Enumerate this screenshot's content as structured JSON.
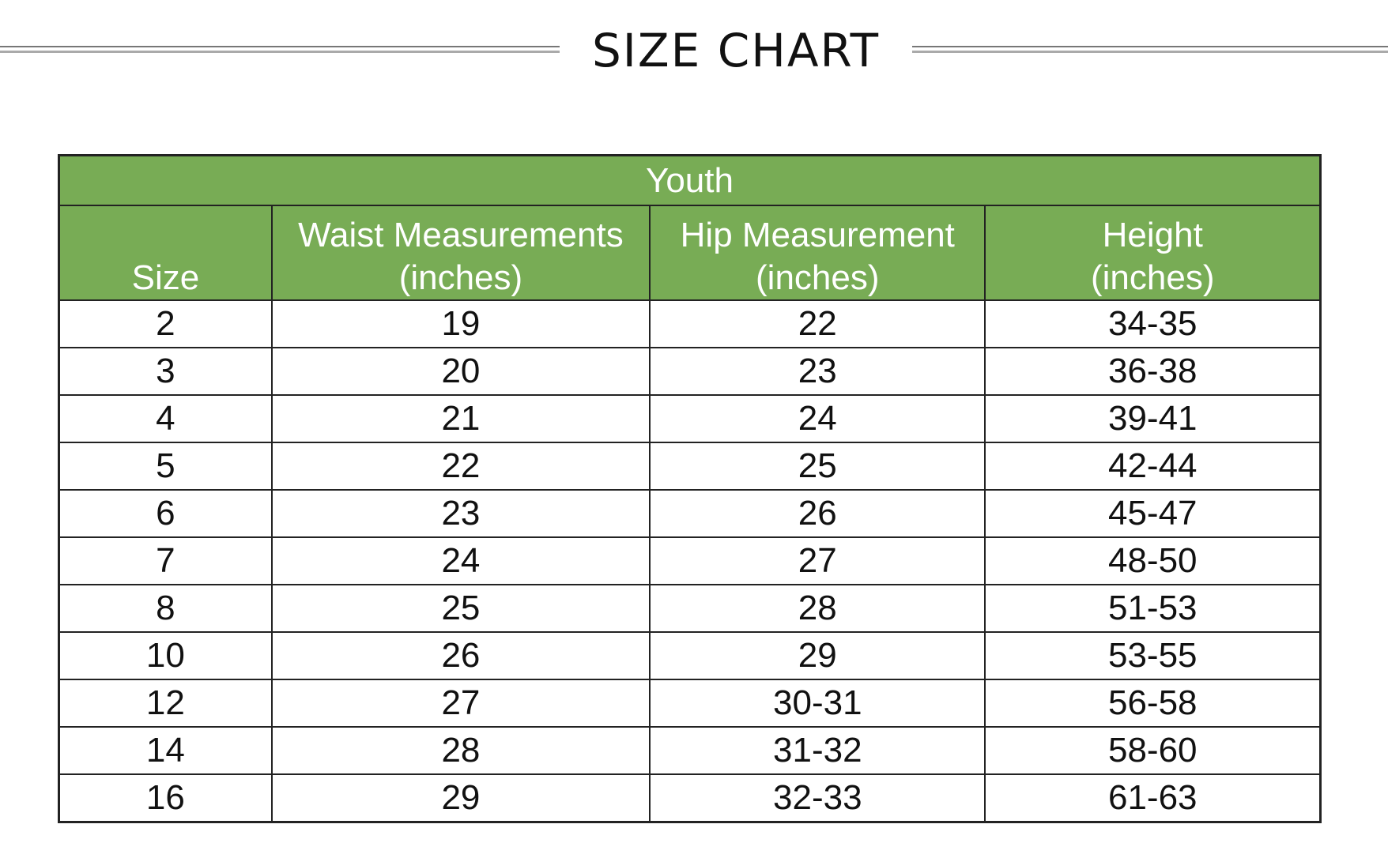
{
  "title": "SIZE CHART",
  "table": {
    "group_header": "Youth",
    "columns": [
      {
        "line1": "",
        "line2": "Size"
      },
      {
        "line1": "Waist Measurements",
        "line2": "(inches)"
      },
      {
        "line1": "Hip Measurement",
        "line2": "(inches)"
      },
      {
        "line1": "Height",
        "line2": "(inches)"
      }
    ],
    "rows": [
      [
        "2",
        "19",
        "22",
        "34-35"
      ],
      [
        "3",
        "20",
        "23",
        "36-38"
      ],
      [
        "4",
        "21",
        "24",
        "39-41"
      ],
      [
        "5",
        "22",
        "25",
        "42-44"
      ],
      [
        "6",
        "23",
        "26",
        "45-47"
      ],
      [
        "7",
        "24",
        "27",
        "48-50"
      ],
      [
        "8",
        "25",
        "28",
        "51-53"
      ],
      [
        "10",
        "26",
        "29",
        "53-55"
      ],
      [
        "12",
        "27",
        "30-31",
        "56-58"
      ],
      [
        "14",
        "28",
        "31-32",
        "58-60"
      ],
      [
        "16",
        "29",
        "32-33",
        "61-63"
      ]
    ]
  },
  "colors": {
    "header_green": "#78ac55"
  }
}
